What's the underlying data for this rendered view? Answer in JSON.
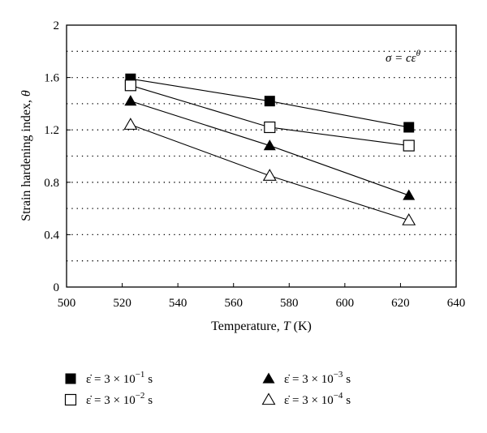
{
  "chart_data": {
    "type": "line",
    "xlabel": "Temperature, ",
    "xlabel_var": "T",
    "xlabel_unit": " (K)",
    "ylabel": "Strain hardening index, ",
    "ylabel_var": "θ",
    "xlim": [
      500,
      640
    ],
    "ylim": [
      0,
      2
    ],
    "x_ticks": [
      500,
      520,
      540,
      560,
      580,
      600,
      620,
      640
    ],
    "y_ticks": [
      0,
      0.4,
      0.8,
      1.2,
      1.6,
      2
    ],
    "y_tick_labels": [
      "0",
      "0.4",
      "0.8",
      "1.2",
      "1.6",
      "2"
    ],
    "y_gridlines": [
      0.2,
      0.4,
      0.6,
      0.8,
      1.0,
      1.2,
      1.4,
      1.6,
      1.8
    ],
    "grid": "horizontal dotted",
    "annotation": "σ = cε",
    "annotation_sup": "θ",
    "legend_position": "bottom",
    "x": [
      523,
      573,
      623
    ],
    "series": [
      {
        "name": "ε̇ = 3 × 10⁻¹ s",
        "label_mantissa": "ε̇ = 3 × 10",
        "label_exp": "−1",
        "label_unit": " s",
        "marker": "filled-square",
        "values": [
          1.59,
          1.42,
          1.22
        ]
      },
      {
        "name": "ε̇ = 3 × 10⁻² s",
        "label_mantissa": "ε̇ = 3 × 10",
        "label_exp": "−2",
        "label_unit": " s",
        "marker": "open-square",
        "values": [
          1.54,
          1.22,
          1.08
        ]
      },
      {
        "name": "ε̇ = 3 × 10⁻³ s",
        "label_mantissa": "ε̇ = 3 × 10",
        "label_exp": "−3",
        "label_unit": " s",
        "marker": "filled-triangle",
        "values": [
          1.42,
          1.08,
          0.7
        ]
      },
      {
        "name": "ε̇ = 3 × 10⁻⁴ s",
        "label_mantissa": "ε̇ = 3 × 10",
        "label_exp": "−4",
        "label_unit": " s",
        "marker": "open-triangle",
        "values": [
          1.24,
          0.85,
          0.51
        ]
      }
    ]
  }
}
